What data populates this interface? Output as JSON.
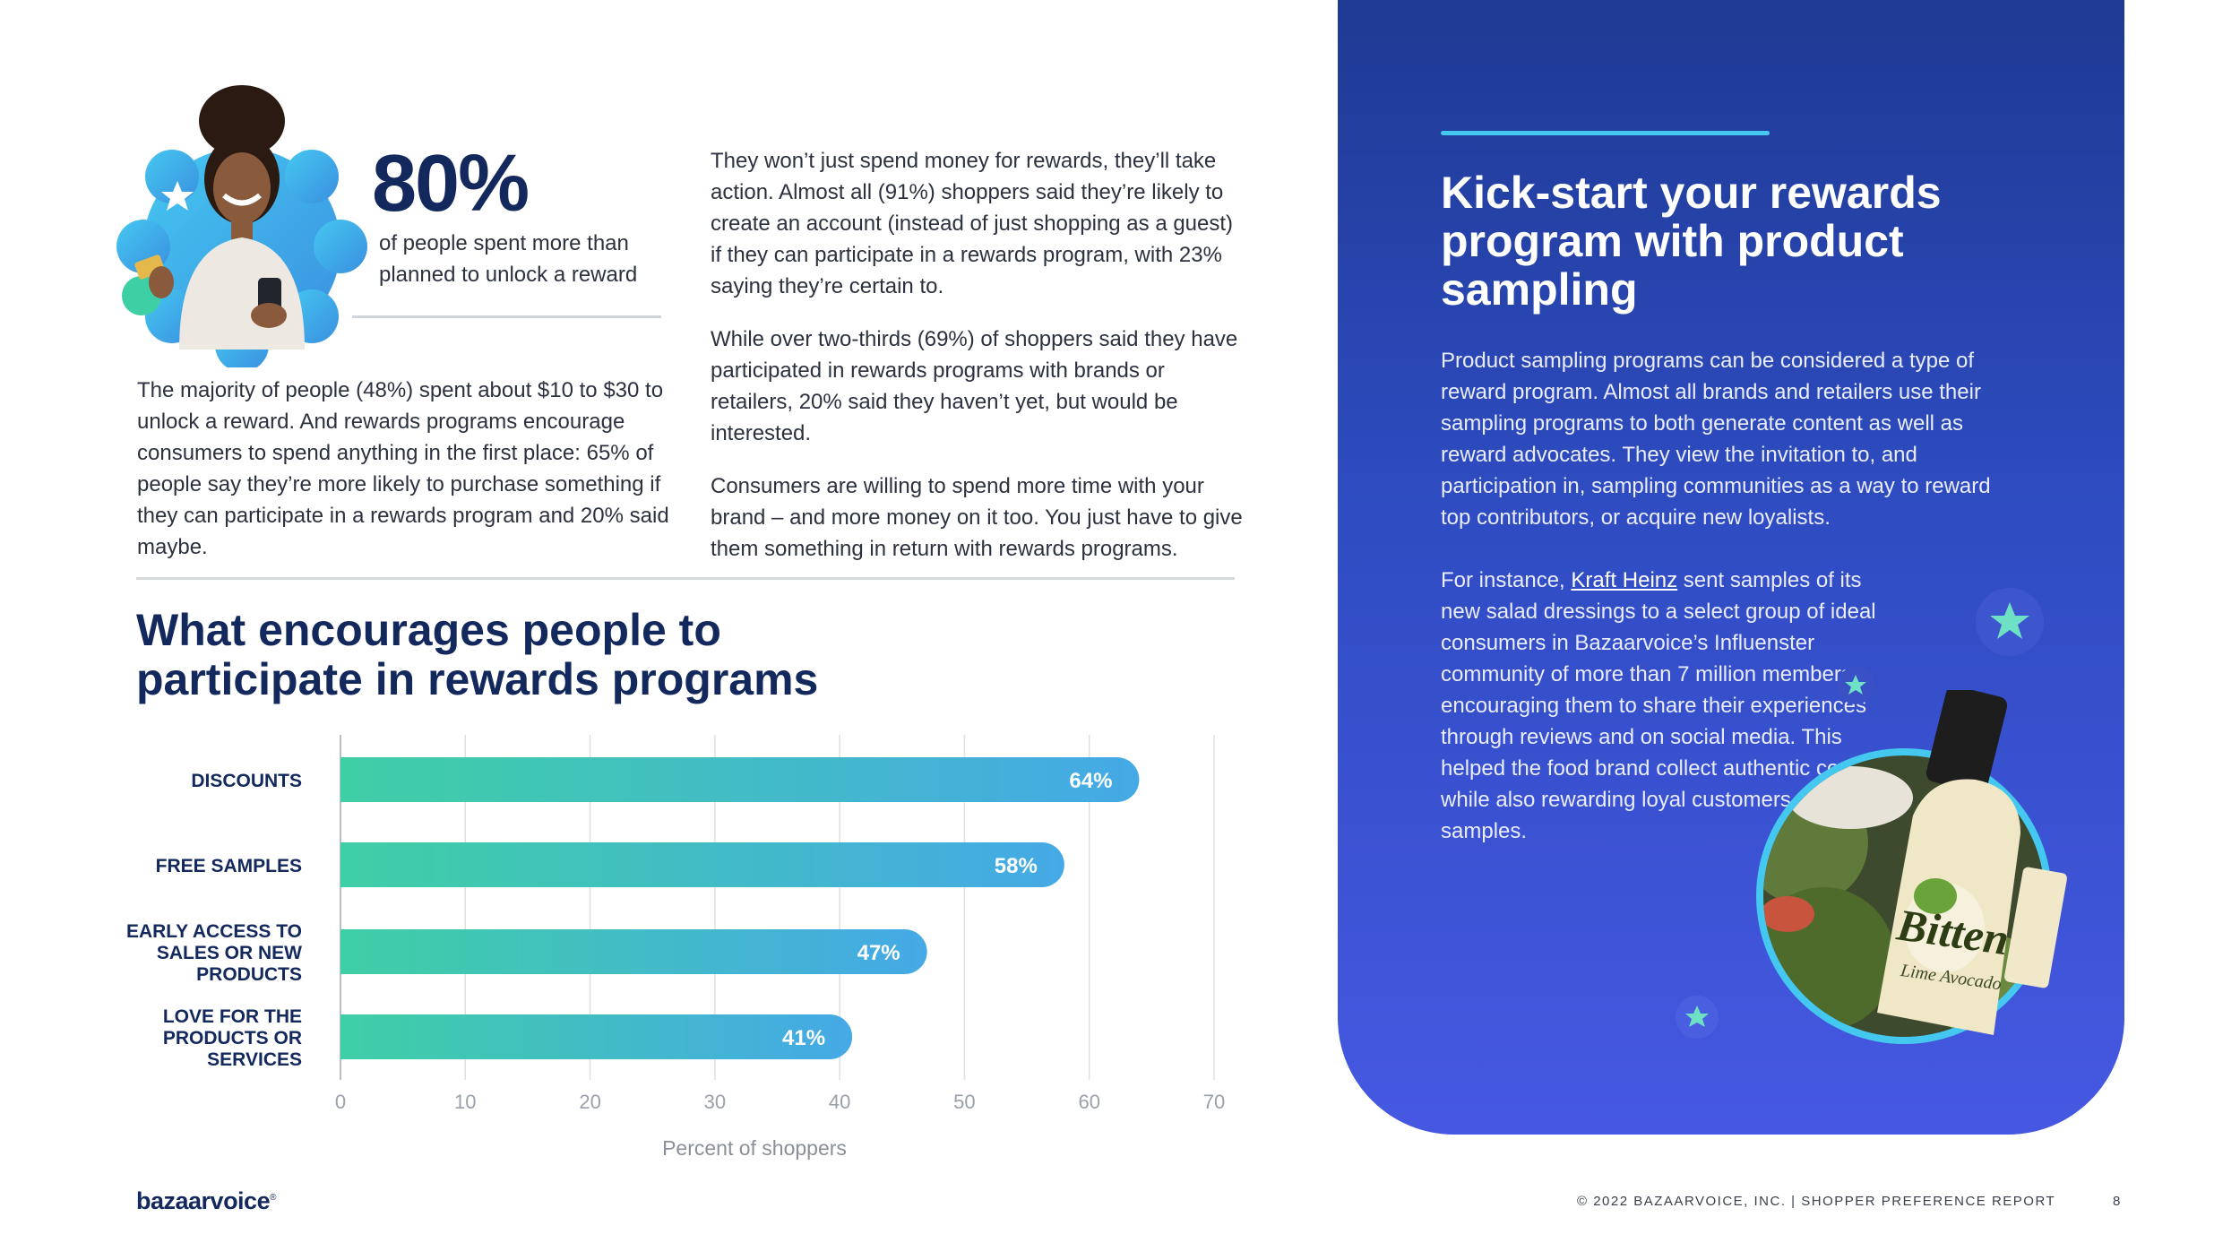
{
  "stat": {
    "value": "80%",
    "caption": "of people spent more than planned to unlock a reward"
  },
  "left_paragraph": "The majority of people (48%) spent about $10 to $30 to unlock a reward. And rewards programs encourage consumers to spend anything in the first place: 65% of people say they’re more likely to purchase something if they can participate in a rewards program and 20% said maybe.",
  "middle_paragraphs": [
    "They won’t just spend money for rewards, they’ll take action. Almost all (91%) shoppers said they’re likely to create an account (instead of just shopping as a guest) if they can participate in a rewards program, with 23% saying they’re certain to.",
    "While over two-thirds (69%) of shoppers said they have participated in rewards programs with brands or retailers, 20% said they haven’t yet, but would be interested.",
    "Consumers are willing to spend more time with your brand – and more money on it too. You just have to give them something in return with rewards programs."
  ],
  "chart_data": {
    "type": "bar",
    "orientation": "horizontal",
    "title": "What encourages people to participate in rewards programs",
    "categories": [
      "DISCOUNTS",
      "FREE SAMPLES",
      "EARLY ACCESS TO SALES OR NEW PRODUCTS",
      "LOVE FOR THE PRODUCTS OR SERVICES"
    ],
    "category_lines": [
      [
        "DISCOUNTS"
      ],
      [
        "FREE SAMPLES"
      ],
      [
        "EARLY ACCESS TO",
        "SALES OR NEW",
        "PRODUCTS"
      ],
      [
        "LOVE FOR THE",
        "PRODUCTS OR",
        "SERVICES"
      ]
    ],
    "values": [
      64,
      58,
      47,
      41
    ],
    "value_labels": [
      "64%",
      "58%",
      "47%",
      "41%"
    ],
    "xlim": [
      0,
      70
    ],
    "xticks": [
      0,
      10,
      20,
      30,
      40,
      50,
      60,
      70
    ],
    "xlabel": "Percent of shoppers",
    "grid": true,
    "bar_gradient": [
      "#3fcfa5",
      "#45a9e6"
    ]
  },
  "panel": {
    "title": "Kick-start your rewards program with product sampling",
    "paragraph1": "Product sampling programs can be considered a type of reward program. Almost all brands and retailers use their sampling programs to both generate content as well as reward advocates. They view the invitation to, and participation in, sampling communities as a way to reward top contributors, or acquire new loyalists.",
    "p2_before": "For instance, ",
    "p2_link": "Kraft Heinz",
    "p2_after": " sent samples of its new salad dressings to a select group of ideal consumers in Bazaarvoice’s Influenster community of more than 7 million members, encouraging them to share their experiences through reviews and on social media. This helped the food brand collect authentic content while also rewarding loyal customers with free samples.",
    "product_brand": "Bitten",
    "product_flavor": "Lime Avocado"
  },
  "footer": {
    "logo": "bazaarvoice",
    "copyright": "© 2022 BAZAARVOICE, INC.  |   SHOPPER PREFERENCE REPORT",
    "page": "8"
  },
  "colors": {
    "navy": "#13285c",
    "panel_top": "#1e3a93",
    "panel_bottom": "#4658e2",
    "accent_cyan": "#45c8f0",
    "star_green": "#6ee0c4"
  }
}
